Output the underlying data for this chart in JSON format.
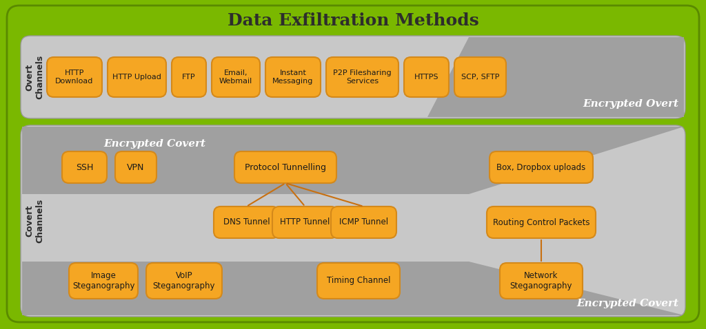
{
  "title": "Data Exfiltration Methods",
  "bg_color": "#7ab800",
  "panel_bg_light": "#d9d9d9",
  "panel_bg_dark": "#b0b0b0",
  "box_fill": "#f5a623",
  "box_edge": "#d4891a",
  "box_text_color": "#1a1a1a",
  "title_color": "#2d2d2d",
  "label_color": "#2d2d2d",
  "encrypted_color": "#e8e8e8",
  "overt_label": "Overt\nChannels",
  "covert_label": "Covert\nChannels",
  "overt_boxes": [
    "HTTP\nDownload",
    "HTTP Upload",
    "FTP",
    "Email,\nWebmail",
    "Instant\nMessaging",
    "P2P Filesharing\nServices",
    "HTTPS",
    "SCP, SFTP"
  ],
  "covert_row1": [
    "SSH",
    "VPN"
  ],
  "protocol_tunnelling": "Protocol Tunnelling",
  "box_dropbox": "Box, Dropbox uploads",
  "covert_row2": [
    "DNS Tunnel",
    "HTTP Tunnel",
    "ICMP Tunnel"
  ],
  "routing": "Routing Control Packets",
  "covert_row3_left": [
    "Image\nSteganography",
    "VoIP\nSteganography"
  ],
  "timing_channel": "Timing Channel",
  "network_steg": "Network\nSteganography",
  "encrypted_overt_text": "Encrypted Overt",
  "encrypted_covert_text": "Encrypted Covert"
}
